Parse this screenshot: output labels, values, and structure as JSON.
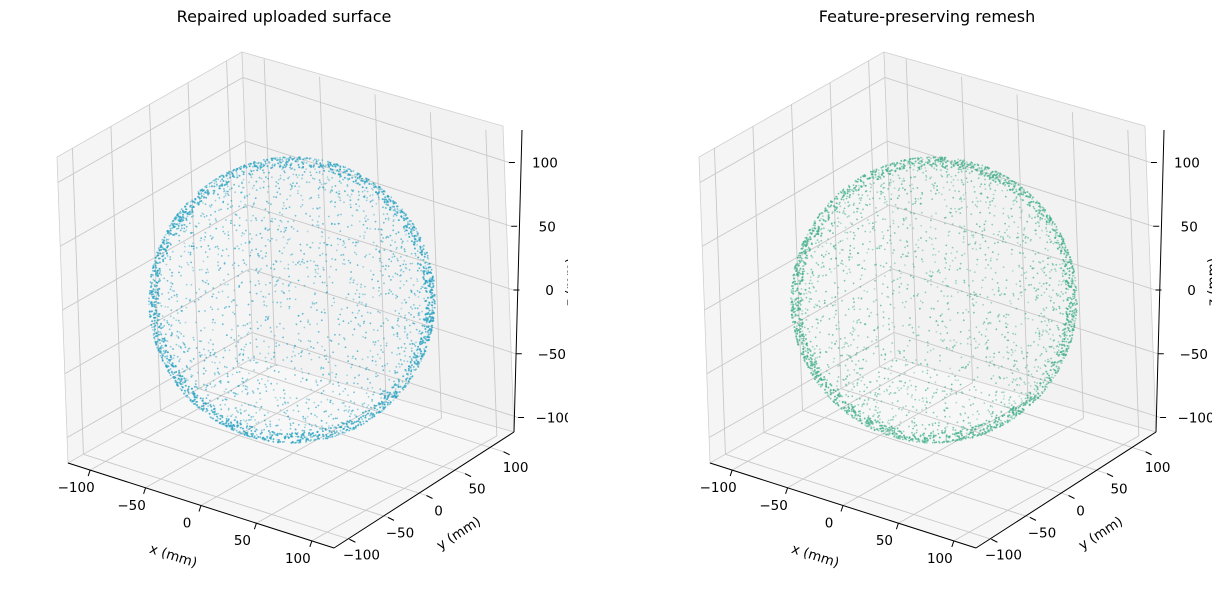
{
  "chart_data": [
    {
      "type": "scatter",
      "projection": "3d",
      "title": "Repaired uploaded surface",
      "xlabel": "x (mm)",
      "ylabel": "y (mm)",
      "zlabel": "z (mm)",
      "xlim": [
        -120,
        120
      ],
      "ylim": [
        -120,
        120
      ],
      "zlim": [
        -120,
        120
      ],
      "xticks": [
        -100,
        -50,
        0,
        50,
        100
      ],
      "yticks": [
        -100,
        -50,
        0,
        50,
        100
      ],
      "zticks": [
        -100,
        -50,
        0,
        50,
        100
      ],
      "grid": true,
      "color": "#2aa3c2",
      "shape": "sphere",
      "center": [
        0,
        0,
        0
      ],
      "radius": 115
    },
    {
      "type": "scatter",
      "projection": "3d",
      "title": "Feature-preserving remesh",
      "xlabel": "x (mm)",
      "ylabel": "y (mm)",
      "zlabel": "z (mm)",
      "xlim": [
        -120,
        120
      ],
      "ylim": [
        -120,
        120
      ],
      "zlim": [
        -120,
        120
      ],
      "xticks": [
        -100,
        -50,
        0,
        50,
        100
      ],
      "yticks": [
        -100,
        -50,
        0,
        50,
        100
      ],
      "zticks": [
        -100,
        -50,
        0,
        50,
        100
      ],
      "grid": true,
      "color": "#45b08c",
      "shape": "sphere",
      "center": [
        0,
        0,
        0
      ],
      "radius": 115
    }
  ]
}
